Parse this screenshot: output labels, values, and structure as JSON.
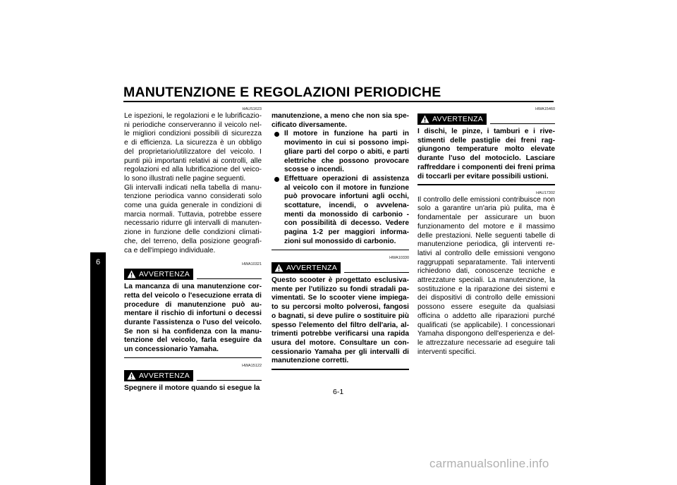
{
  "header": {
    "title": "MANUTENZIONE E REGOLAZIONI PERIODICHE",
    "chapter": "6"
  },
  "column1": {
    "intro_code": "HAUS1623",
    "intro_p1": "Le ispezioni, le regolazioni e le lubrificazio-ni periodiche conserveranno il veicolo nel-le migliori condizioni possibili di sicurezza e di efficienza. La sicurezza è un obbligo del proprietario/utilizzatore del veicolo. I punti più importanti relativi ai controlli, alle regolazioni ed alla lubrificazione del veico-lo sono illustrati nelle pagine seguenti.",
    "intro_p2": "Gli intervalli indicati nella tabella di manu-tenzione periodica vanno considerati solo come una guida generale in condizioni di marcia normali. Tuttavia, potrebbe essere necessario ridurre gli intervalli di manuten-zione in funzione delle condizioni climati-che, del terreno, della posizione geografi-ca e dell'impiego individuale.",
    "warning1_code": "HWA10321",
    "warning1_label": "AVVERTENZA",
    "warning1_text": "La mancanza di una manutenzione cor-retta del veicolo o l'esecuzione errata di procedure di manutenzione può au-mentare il rischio di infortuni o decessi durante l'assistenza o l'uso del veicolo. Se non si ha confidenza con la manu-tenzione del veicolo, farla eseguire da un concessionario Yamaha.",
    "warning2_code": "HWA15122",
    "warning2_label": "AVVERTENZA",
    "warning2_text": "Spegnere il motore quando si esegue la"
  },
  "column2": {
    "warning2_cont": "manutenzione, a meno che non sia spe-cificato diversamente.",
    "bullets": [
      "Il motore in funzione ha parti in movimento in cui si possono impi-gliare parti del corpo o abiti, e parti elettriche che possono provocare scosse o incendi.",
      "Effettuare operazioni di assistenza al veicolo con il motore in funzione può provocare infortuni agli occhi, scottature, incendi, o avvelena-menti da monossido di carbonio - con possibilità di decesso. Vedere pagina 1-2 per maggiori informa-zioni sul monossido di carbonio."
    ],
    "warning3_code": "HWA10330",
    "warning3_label": "AVVERTENZA",
    "warning3_text": "Questo scooter è progettato esclusiva-mente per l'utilizzo su fondi stradali pa-vimentati. Se lo scooter viene impiega-to su percorsi molto polverosi, fangosi o bagnati, si deve pulire o sostituire più spesso l'elemento del filtro dell'aria, al-trimenti potrebbe verificarsi una rapida usura del motore. Consultare un con-cessionario Yamaha per gli intervalli di manutenzione corretti."
  },
  "column3": {
    "warning4_code": "HWA15460",
    "warning4_label": "AVVERTENZA",
    "warning4_text": "I dischi, le pinze, i tamburi e i rive-stimenti delle pastiglie dei freni rag-giungono temperature molto elevate durante l'uso del motociclo. Lasciare raffreddare i componenti dei freni prima di toccarli per evitare possibili ustioni.",
    "emissions_code": "HAU17302",
    "emissions_text": "Il controllo delle emissioni contribuisce non solo a garantire un'aria più pulita, ma è fondamentale per assicurare un buon funzionamento del motore e il massimo delle prestazioni. Nelle seguenti tabelle di manutenzione periodica, gli interventi re-lativi al controllo delle emissioni vengono raggruppati separatamente. Tali interventi richiedono dati, conoscenze tecniche e attrezzature speciali. La manutenzione, la sostituzione e la riparazione dei sistemi e dei dispositivi di controllo delle emissioni possono essere eseguite da qualsiasi officina o addetto alle riparazioni purché qualificati (se applicabile). I concessionari Yamaha dispongono dell'esperienza e del-le attrezzature necessarie ad eseguire tali interventi specifici."
  },
  "footer": {
    "page_number": "6-1",
    "watermark": "carmanualsonline.info"
  },
  "icons": {
    "warning_icon": "warning-triangle-exclamation"
  }
}
